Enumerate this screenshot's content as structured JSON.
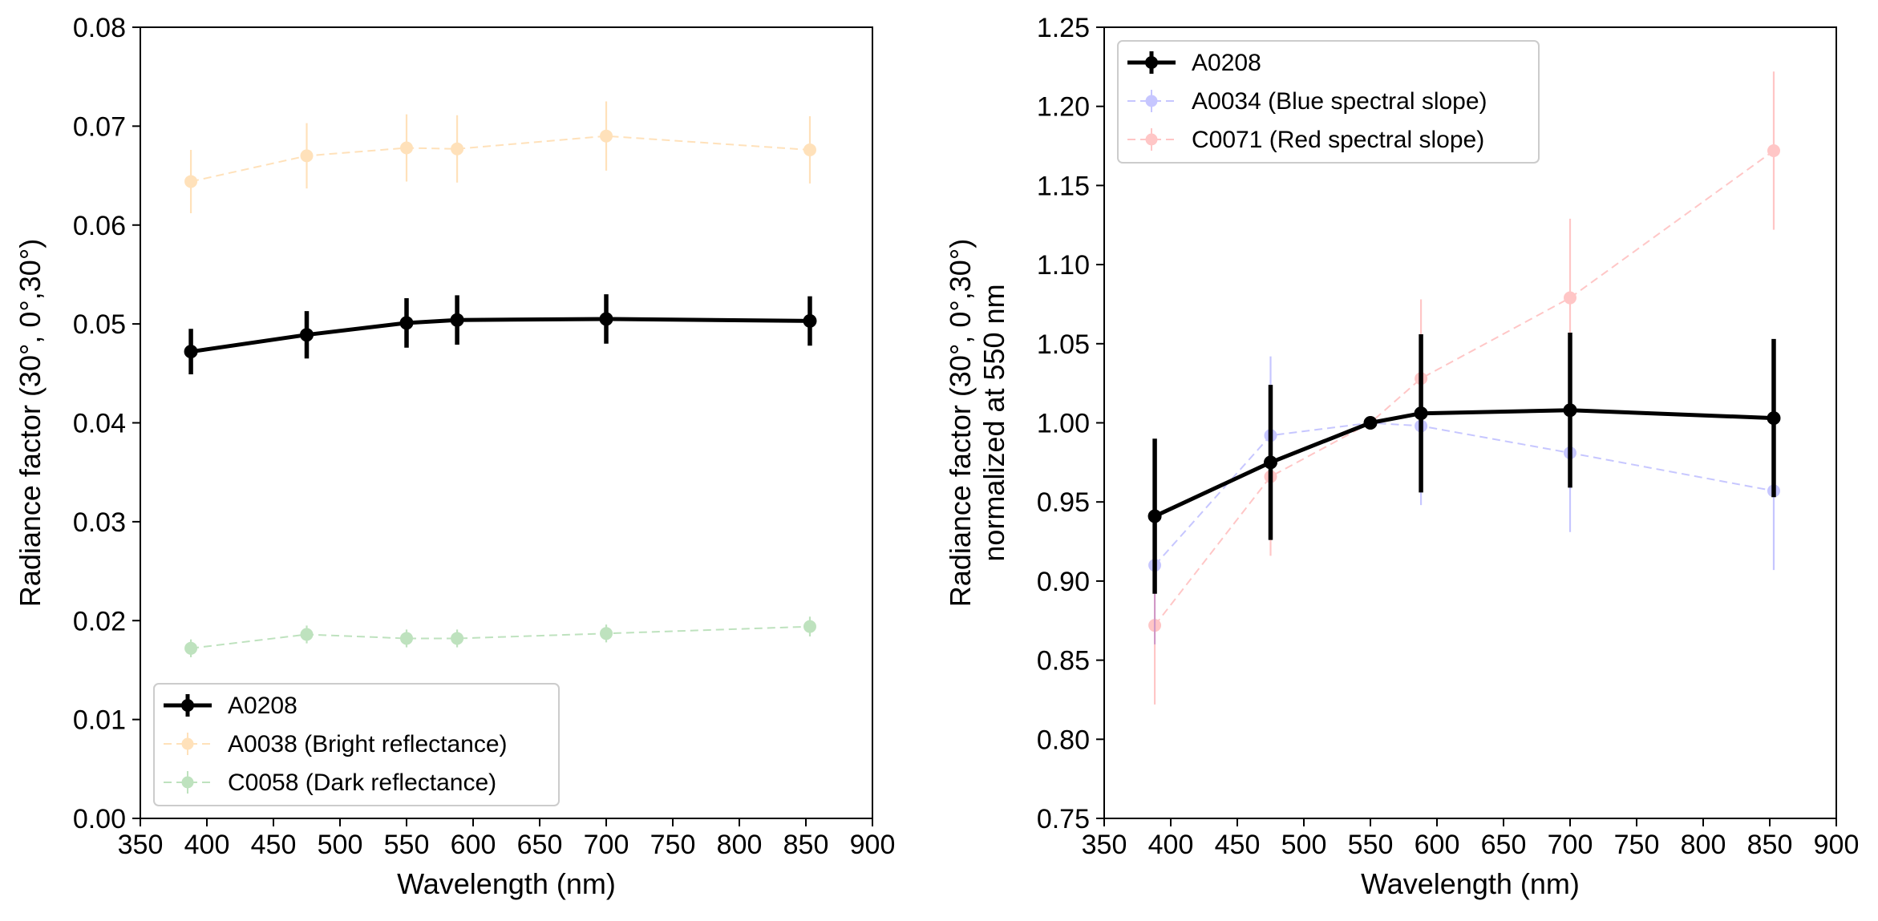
{
  "chart_data": [
    {
      "type": "line",
      "xlabel": "Wavelength (nm)",
      "ylabel": "Radiance factor (30°, 0°,30°)",
      "xlim": [
        350,
        900
      ],
      "ylim": [
        0.0,
        0.08
      ],
      "xticks": [
        "350",
        "400",
        "450",
        "500",
        "550",
        "600",
        "650",
        "700",
        "750",
        "800",
        "850",
        "900"
      ],
      "yticks": [
        "0.00",
        "0.01",
        "0.02",
        "0.03",
        "0.04",
        "0.05",
        "0.06",
        "0.07",
        "0.08"
      ],
      "x": [
        388,
        475,
        550,
        588,
        700,
        853
      ],
      "legend_position": "lower-left",
      "series": [
        {
          "name": "A0208",
          "values": [
            0.0472,
            0.0489,
            0.0501,
            0.0504,
            0.0505,
            0.0503
          ],
          "errors": [
            0.0023,
            0.0024,
            0.0025,
            0.0025,
            0.0025,
            0.0025
          ],
          "color": "#000000",
          "style": "solid",
          "opacity": 1.0
        },
        {
          "name": "A0038 (Bright reflectance)",
          "values": [
            0.0644,
            0.067,
            0.0678,
            0.0677,
            0.069,
            0.0676
          ],
          "errors": [
            0.0032,
            0.0033,
            0.0034,
            0.0034,
            0.0035,
            0.0034
          ],
          "color": "#ff9f1f",
          "style": "dashed",
          "opacity": 0.3
        },
        {
          "name": "C0058 (Dark reflectance)",
          "values": [
            0.0172,
            0.0186,
            0.0182,
            0.0182,
            0.0187,
            0.0194
          ],
          "errors": [
            0.0009,
            0.0009,
            0.0009,
            0.0009,
            0.0009,
            0.001
          ],
          "color": "#2ca02c",
          "style": "dashed",
          "opacity": 0.3
        }
      ]
    },
    {
      "type": "line",
      "xlabel": "Wavelength (nm)",
      "ylabel_lines": [
        "Radiance factor (30°, 0°,30°)",
        "normalized at 550 nm"
      ],
      "xlim": [
        350,
        900
      ],
      "ylim": [
        0.75,
        1.25
      ],
      "xticks": [
        "350",
        "400",
        "450",
        "500",
        "550",
        "600",
        "650",
        "700",
        "750",
        "800",
        "850",
        "900"
      ],
      "yticks": [
        "0.75",
        "0.80",
        "0.85",
        "0.90",
        "0.95",
        "1.00",
        "1.05",
        "1.10",
        "1.15",
        "1.20",
        "1.25"
      ],
      "x": [
        388,
        475,
        550,
        588,
        700,
        853
      ],
      "legend_position": "upper-left",
      "series": [
        {
          "name": "A0208",
          "values": [
            0.941,
            0.975,
            1.0,
            1.006,
            1.008,
            1.003
          ],
          "errors": [
            0.049,
            0.049,
            0.0,
            0.05,
            0.049,
            0.05
          ],
          "color": "#000000",
          "style": "solid",
          "opacity": 1.0
        },
        {
          "name": "A0034 (Blue spectral slope)",
          "values": [
            0.91,
            0.992,
            1.0,
            0.998,
            0.981,
            0.957
          ],
          "errors": [
            0.05,
            0.05,
            0.0,
            0.05,
            0.05,
            0.05
          ],
          "color": "#0000ff",
          "style": "dashed",
          "opacity": 0.22
        },
        {
          "name": "C0071 (Red spectral slope)",
          "values": [
            0.872,
            0.966,
            1.0,
            1.028,
            1.079,
            1.172
          ],
          "errors": [
            0.05,
            0.05,
            0.0,
            0.05,
            0.05,
            0.05
          ],
          "color": "#ff0000",
          "style": "dashed",
          "opacity": 0.22
        }
      ]
    }
  ]
}
